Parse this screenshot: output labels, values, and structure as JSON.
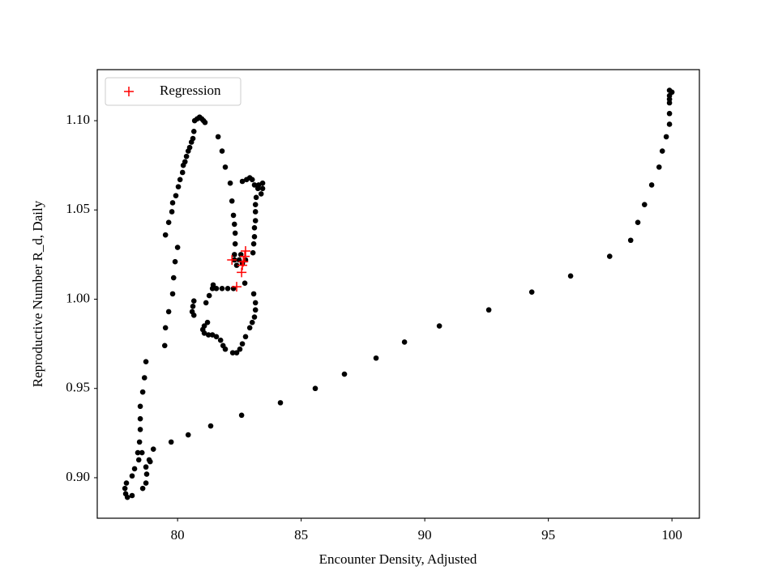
{
  "chart_data": {
    "type": "scatter",
    "xlabel": "Encounter Density, Adjusted",
    "ylabel": "Reproductive Number R_d, Daily",
    "xlim": [
      76.75,
      101.11
    ],
    "ylim": [
      0.8773,
      1.1286
    ],
    "xticks": [
      80,
      85,
      90,
      95,
      100
    ],
    "yticks": [
      {
        "value": 0.9,
        "label": "0.90"
      },
      {
        "value": 0.95,
        "label": "0.95"
      },
      {
        "value": 1.0,
        "label": "1.00"
      },
      {
        "value": 1.05,
        "label": "1.05"
      },
      {
        "value": 1.1,
        "label": "1.10"
      }
    ],
    "legend": "upper left",
    "series": [
      {
        "color": "#000000",
        "marker": "o",
        "x": [
          99.9,
          100.0,
          99.9,
          99.9,
          99.9,
          99.9,
          99.9,
          99.77,
          99.61,
          99.48,
          99.18,
          98.89,
          98.62,
          98.33,
          97.48,
          95.9,
          94.33,
          92.59,
          90.59,
          89.18,
          88.03,
          86.75,
          85.57,
          84.16,
          82.59,
          81.34,
          80.43,
          79.74,
          79.02,
          78.85,
          78.89,
          78.72,
          78.75,
          78.72,
          78.59,
          78.43,
          78.56,
          78.39,
          78.26,
          78.16,
          77.93,
          77.87,
          77.9,
          77.97,
          78.16,
          78.46,
          78.49,
          78.49,
          78.49,
          78.59,
          78.66,
          78.72,
          79.48,
          79.51,
          79.64,
          79.8,
          79.84,
          79.9,
          80.0,
          79.51,
          79.64,
          79.77,
          79.8,
          79.93,
          80.03,
          80.1,
          80.2,
          80.23,
          80.3,
          80.36,
          80.43,
          80.49,
          80.56,
          80.62,
          80.66,
          80.69,
          80.79,
          80.89,
          80.98,
          81.05,
          81.11,
          81.64,
          81.8,
          81.93,
          82.13,
          82.2,
          82.26,
          82.3,
          82.33,
          82.33,
          82.3,
          82.62,
          82.79,
          82.92,
          83.02,
          83.11,
          83.25,
          83.38,
          83.44,
          83.44,
          83.28,
          83.18,
          83.15,
          83.15,
          83.15,
          83.11,
          83.11,
          83.08,
          83.05,
          82.3,
          82.39,
          82.49,
          82.62,
          82.75,
          82.56,
          82.72,
          82.26,
          82.03,
          81.8,
          81.57,
          81.44,
          81.41,
          81.28,
          81.15,
          80.66,
          80.62,
          80.59,
          80.66,
          81.21,
          81.08,
          81.02,
          81.08,
          81.25,
          81.41,
          81.57,
          81.74,
          81.84,
          81.93,
          82.23,
          82.39,
          82.52,
          82.62,
          82.75,
          82.92,
          83.02,
          83.11,
          83.15,
          83.15,
          83.08
        ],
        "y": [
          1.117,
          1.116,
          1.114,
          1.112,
          1.11,
          1.104,
          1.098,
          1.091,
          1.083,
          1.074,
          1.064,
          1.053,
          1.043,
          1.033,
          1.024,
          1.013,
          1.004,
          0.994,
          0.985,
          0.976,
          0.967,
          0.958,
          0.95,
          0.942,
          0.935,
          0.929,
          0.924,
          0.92,
          0.916,
          0.91,
          0.909,
          0.906,
          0.902,
          0.897,
          0.894,
          0.91,
          0.914,
          0.914,
          0.905,
          0.901,
          0.897,
          0.894,
          0.891,
          0.889,
          0.89,
          0.92,
          0.927,
          0.933,
          0.94,
          0.948,
          0.956,
          0.965,
          0.974,
          0.984,
          0.993,
          1.003,
          1.012,
          1.021,
          1.029,
          1.036,
          1.043,
          1.049,
          1.054,
          1.058,
          1.063,
          1.067,
          1.071,
          1.075,
          1.077,
          1.08,
          1.083,
          1.085,
          1.088,
          1.09,
          1.094,
          1.1,
          1.101,
          1.102,
          1.101,
          1.1,
          1.099,
          1.091,
          1.083,
          1.074,
          1.065,
          1.055,
          1.047,
          1.042,
          1.037,
          1.031,
          1.025,
          1.066,
          1.067,
          1.068,
          1.067,
          1.064,
          1.062,
          1.059,
          1.062,
          1.065,
          1.064,
          1.057,
          1.053,
          1.049,
          1.044,
          1.04,
          1.035,
          1.031,
          1.026,
          1.022,
          1.019,
          1.022,
          1.02,
          1.022,
          1.025,
          1.009,
          1.006,
          1.006,
          1.006,
          1.006,
          1.008,
          1.006,
          1.002,
          0.998,
          0.999,
          0.996,
          0.993,
          0.991,
          0.987,
          0.985,
          0.983,
          0.981,
          0.98,
          0.98,
          0.979,
          0.977,
          0.974,
          0.972,
          0.97,
          0.97,
          0.972,
          0.975,
          0.979,
          0.984,
          0.987,
          0.99,
          0.994,
          0.998,
          1.003
        ]
      },
      {
        "name": "Regression",
        "color": "#ff0000",
        "marker": "+",
        "x": [
          82.75,
          82.72,
          82.66,
          82.62,
          82.59,
          82.39,
          82.2
        ],
        "y": [
          1.027,
          1.024,
          1.021,
          1.019,
          1.015,
          1.007,
          1.022
        ]
      }
    ]
  }
}
